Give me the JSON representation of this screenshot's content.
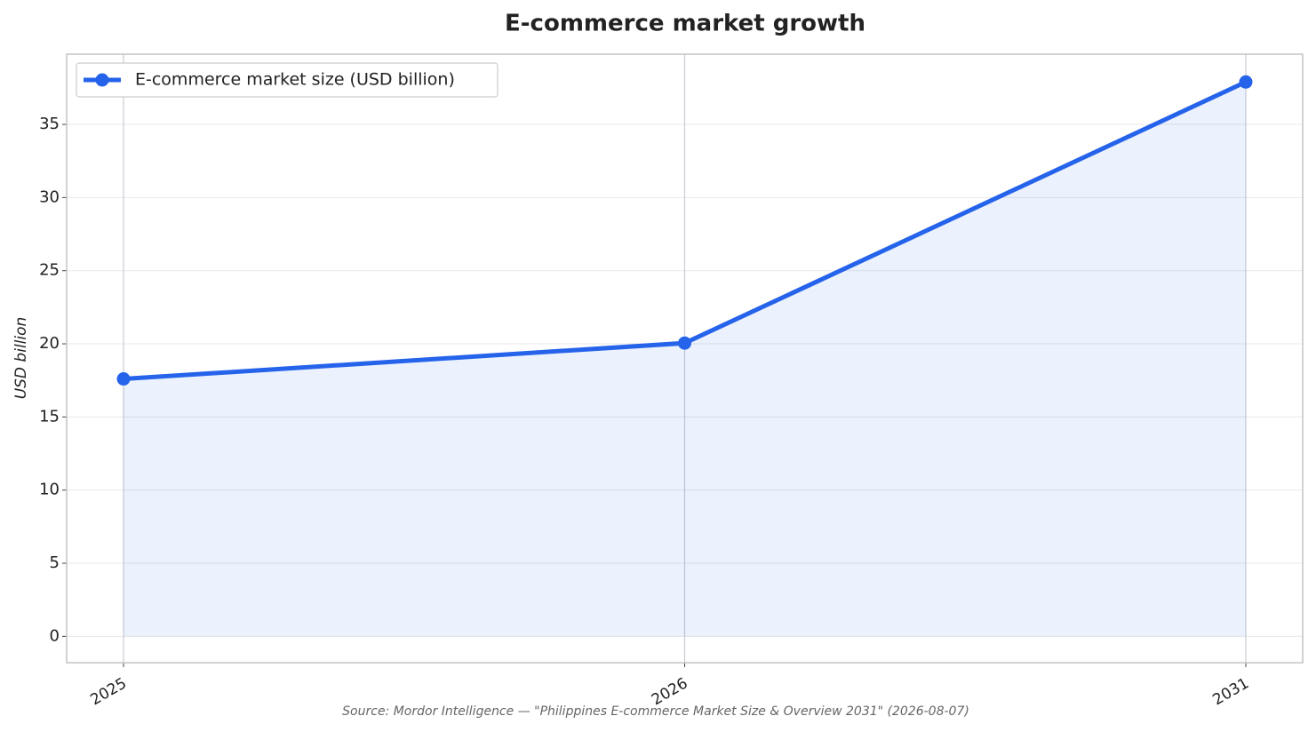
{
  "chart_data": {
    "type": "line",
    "title": "E-commerce market growth",
    "y_label": "USD billion",
    "source": "Source: Mordor Intelligence — \"Philippines E-commerce Market Size & Overview 2031\" (2026-08-07)",
    "categories": [
      "2025",
      "2026",
      "2031"
    ],
    "series": [
      {
        "name": "E-commerce market size (USD billion)",
        "color": "#2563eb",
        "values": [
          17.6,
          20.05,
          37.9
        ]
      }
    ],
    "ylim": [
      -1.8,
      39.8
    ],
    "yticks": [
      0,
      5,
      10,
      15,
      20,
      25,
      30,
      35
    ],
    "grid": true,
    "fill_area": true,
    "legend": "upper left"
  }
}
